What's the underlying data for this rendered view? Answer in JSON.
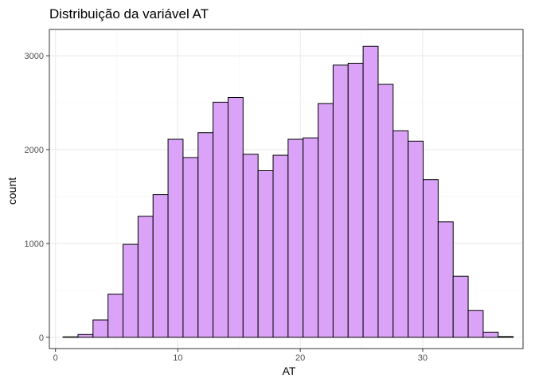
{
  "chart_data": {
    "type": "bar",
    "title": "Distribuição da variável AT",
    "xlabel": "AT",
    "ylabel": "count",
    "xlim": [
      -0.5,
      38.2
    ],
    "ylim": [
      -120,
      3280
    ],
    "x_ticks": [
      {
        "value": 0,
        "label": "0"
      },
      {
        "value": 10,
        "label": "10"
      },
      {
        "value": 20,
        "label": "20"
      },
      {
        "value": 30,
        "label": "30"
      }
    ],
    "y_ticks": [
      {
        "value": 0,
        "label": "0"
      },
      {
        "value": 1000,
        "label": "1000"
      },
      {
        "value": 2000,
        "label": "2000"
      },
      {
        "value": 3000,
        "label": "3000"
      }
    ],
    "grid": true,
    "bin_width": 1.226,
    "bins": [
      {
        "x0": 0.614,
        "count": 5
      },
      {
        "x0": 1.84,
        "count": 30
      },
      {
        "x0": 3.066,
        "count": 185
      },
      {
        "x0": 4.292,
        "count": 460
      },
      {
        "x0": 5.518,
        "count": 990
      },
      {
        "x0": 6.744,
        "count": 1290
      },
      {
        "x0": 7.97,
        "count": 1520
      },
      {
        "x0": 9.196,
        "count": 2110
      },
      {
        "x0": 10.422,
        "count": 1915
      },
      {
        "x0": 11.648,
        "count": 2180
      },
      {
        "x0": 12.874,
        "count": 2505
      },
      {
        "x0": 14.1,
        "count": 2555
      },
      {
        "x0": 15.326,
        "count": 1950
      },
      {
        "x0": 16.552,
        "count": 1775
      },
      {
        "x0": 17.778,
        "count": 1940
      },
      {
        "x0": 19.004,
        "count": 2110
      },
      {
        "x0": 20.23,
        "count": 2125
      },
      {
        "x0": 21.456,
        "count": 2490
      },
      {
        "x0": 22.682,
        "count": 2900
      },
      {
        "x0": 23.908,
        "count": 2920
      },
      {
        "x0": 25.134,
        "count": 3100
      },
      {
        "x0": 26.36,
        "count": 2695
      },
      {
        "x0": 27.586,
        "count": 2200
      },
      {
        "x0": 28.812,
        "count": 2090
      },
      {
        "x0": 30.038,
        "count": 1680
      },
      {
        "x0": 31.264,
        "count": 1230
      },
      {
        "x0": 32.49,
        "count": 650
      },
      {
        "x0": 33.716,
        "count": 285
      },
      {
        "x0": 34.942,
        "count": 55
      },
      {
        "x0": 36.168,
        "count": 8
      }
    ],
    "colors": {
      "bar_fill": "#daa3f7",
      "bar_stroke": "#000000",
      "grid_major": "#ebebeb",
      "grid_minor": "#f5f5f5",
      "panel_border": "#333333",
      "tick_text": "#4d4d4d"
    }
  }
}
